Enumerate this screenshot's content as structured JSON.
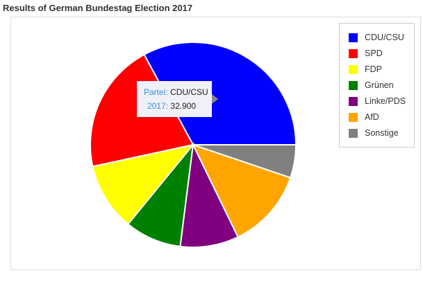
{
  "title": "Results of German Bundestag Election 2017",
  "tooltip": {
    "key1": "Partei",
    "sep": ":",
    "value1": "CDU/CSU",
    "key2": "2017",
    "value2": "32.900"
  },
  "chart_data": {
    "type": "pie",
    "title": "Results of German Bundestag Election 2017",
    "series_name": "2017",
    "category_name": "Partei",
    "categories": [
      "CDU/CSU",
      "SPD",
      "FDP",
      "Grünen",
      "Linke/PDS",
      "AfD",
      "Sonstige"
    ],
    "values": [
      32.9,
      20.5,
      10.7,
      8.9,
      9.2,
      12.6,
      5.2
    ],
    "colors": [
      "#0000ff",
      "#ff0000",
      "#ffff00",
      "#008000",
      "#800080",
      "#ffa500",
      "#808080"
    ],
    "legend_position": "top-right"
  }
}
